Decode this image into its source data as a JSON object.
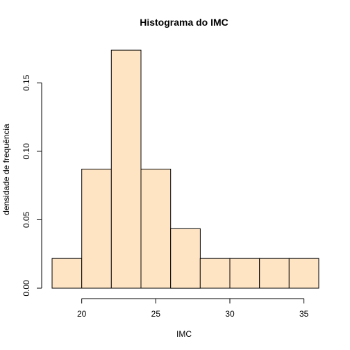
{
  "chart_data": {
    "type": "bar",
    "title": "Histograma do IMC",
    "xlabel": "IMC",
    "ylabel": "densidade de frequência",
    "bin_edges": [
      18,
      20,
      22,
      24,
      26,
      28,
      30,
      32,
      34,
      36
    ],
    "values": [
      0.0217,
      0.087,
      0.1739,
      0.087,
      0.0435,
      0.0217,
      0.0217,
      0.0217,
      0.0217
    ],
    "xlim": [
      18,
      36
    ],
    "ylim": [
      0,
      0.174
    ],
    "xticks": [
      20,
      25,
      30,
      35
    ],
    "xtick_labels": [
      "20",
      "25",
      "30",
      "35"
    ],
    "yticks": [
      0.0,
      0.05,
      0.1,
      0.15
    ],
    "ytick_labels": [
      "0.00",
      "0.05",
      "0.10",
      "0.15"
    ],
    "bar_color": "#ffe4c4",
    "grid": false,
    "legend": "none"
  }
}
